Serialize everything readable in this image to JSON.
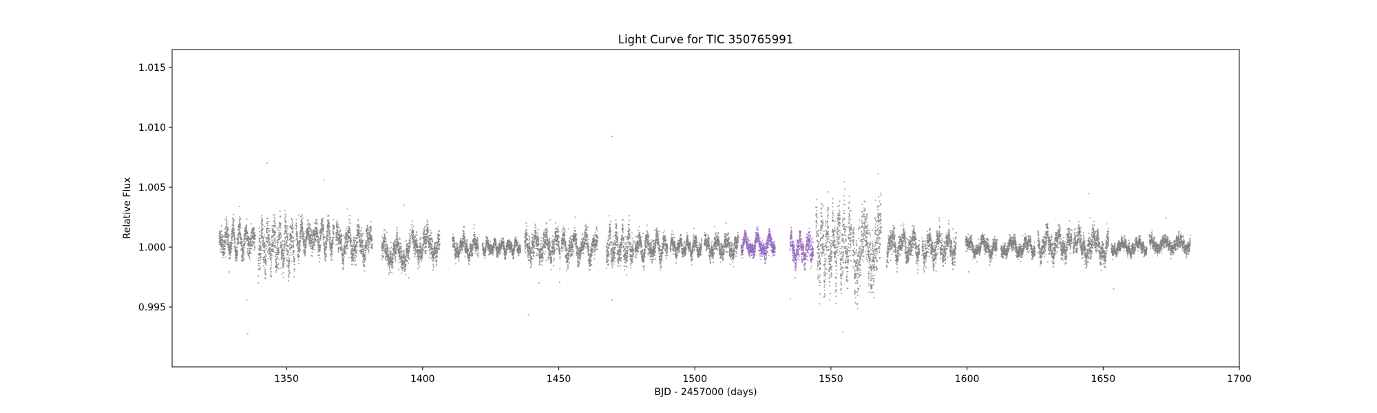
{
  "chart_data": {
    "type": "scatter",
    "title": "Light Curve for TIC 350765991",
    "xlabel": "BJD - 2457000 (days)",
    "ylabel": "Relative Flux",
    "xlim": [
      1308,
      1700
    ],
    "ylim": [
      0.99,
      1.0165
    ],
    "xticks": [
      1350,
      1400,
      1450,
      1500,
      1550,
      1600,
      1650,
      1700
    ],
    "yticks": [
      0.995,
      1.0,
      1.005,
      1.01,
      1.015
    ],
    "xtick_labels": [
      "1350",
      "1400",
      "1450",
      "1500",
      "1550",
      "1600",
      "1650",
      "1700"
    ],
    "ytick_labels": [
      "0.995",
      "1.000",
      "1.005",
      "1.010",
      "1.015"
    ],
    "grid": false,
    "legend": "none",
    "colors": {
      "base": "#808080",
      "highlight": "#9467bd"
    },
    "series": [
      {
        "color": "#808080",
        "segments": [
          {
            "x0": 1325.3,
            "x1": 1338.5,
            "center": 1.0005,
            "scatter": 0.0009
          },
          {
            "x0": 1339.7,
            "x1": 1353.0,
            "center": 1.0002,
            "scatter": 0.0013
          },
          {
            "x0": 1353.5,
            "x1": 1367.5,
            "center": 1.0008,
            "scatter": 0.0008
          },
          {
            "x0": 1368.2,
            "x1": 1381.5,
            "center": 1.0003,
            "scatter": 0.0009
          },
          {
            "x0": 1385.0,
            "x1": 1395.5,
            "center": 0.9995,
            "scatter": 0.0008
          },
          {
            "x0": 1396.0,
            "x1": 1406.3,
            "center": 1.0002,
            "scatter": 0.0008
          },
          {
            "x0": 1411.0,
            "x1": 1420.5,
            "center": 1.0,
            "scatter": 0.0006
          },
          {
            "x0": 1422.0,
            "x1": 1436.0,
            "center": 1.0,
            "scatter": 0.0004
          },
          {
            "x0": 1437.5,
            "x1": 1450.5,
            "center": 1.0001,
            "scatter": 0.0008
          },
          {
            "x0": 1451.0,
            "x1": 1464.3,
            "center": 1.0,
            "scatter": 0.0008
          },
          {
            "x0": 1467.5,
            "x1": 1477.5,
            "center": 1.0,
            "scatter": 0.001
          },
          {
            "x0": 1478.0,
            "x1": 1490.0,
            "center": 1.0,
            "scatter": 0.0007
          },
          {
            "x0": 1491.0,
            "x1": 1502.5,
            "center": 1.0,
            "scatter": 0.0005
          },
          {
            "x0": 1503.5,
            "x1": 1516.0,
            "center": 1.0,
            "scatter": 0.0006
          },
          {
            "x0": 1544.5,
            "x1": 1557.5,
            "center": 1.0,
            "scatter": 0.002
          },
          {
            "x0": 1558.0,
            "x1": 1568.5,
            "center": 0.9998,
            "scatter": 0.002
          },
          {
            "x0": 1570.5,
            "x1": 1582.5,
            "center": 1.0001,
            "scatter": 0.0008
          },
          {
            "x0": 1583.5,
            "x1": 1596.0,
            "center": 1.0,
            "scatter": 0.0008
          },
          {
            "x0": 1599.5,
            "x1": 1611.0,
            "center": 1.0,
            "scatter": 0.0005
          },
          {
            "x0": 1612.5,
            "x1": 1625.0,
            "center": 1.0,
            "scatter": 0.0005
          },
          {
            "x0": 1626.0,
            "x1": 1638.5,
            "center": 1.0002,
            "scatter": 0.0008
          },
          {
            "x0": 1639.0,
            "x1": 1652.0,
            "center": 1.0001,
            "scatter": 0.0008
          },
          {
            "x0": 1653.0,
            "x1": 1666.0,
            "center": 1.0,
            "scatter": 0.0004
          },
          {
            "x0": 1667.0,
            "x1": 1682.0,
            "center": 1.0002,
            "scatter": 0.0004
          }
        ]
      },
      {
        "color": "#9467bd",
        "segments": [
          {
            "x0": 1517.0,
            "x1": 1529.5,
            "center": 1.0001,
            "scatter": 0.0006
          },
          {
            "x0": 1535.0,
            "x1": 1543.5,
            "center": 0.9998,
            "scatter": 0.0008
          }
        ]
      }
    ]
  }
}
